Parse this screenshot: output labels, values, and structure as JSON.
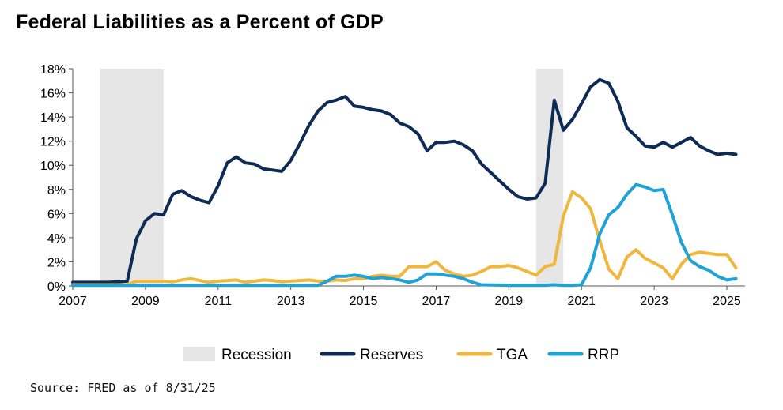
{
  "title": "Federal Liabilities as a Percent of GDP",
  "source": "Source: FRED as of 8/31/25",
  "colors": {
    "Recession": "#e6e6e6",
    "Reserves": "#0d2b55",
    "TGA": "#f0b73c",
    "RRP": "#1fa3d6"
  },
  "chart_data": {
    "type": "line",
    "title": "Federal Liabilities as a Percent of GDP",
    "xlabel": "",
    "ylabel": "",
    "xlim": [
      2007,
      2025.5
    ],
    "ylim": [
      0,
      18
    ],
    "x_ticks": [
      2007,
      2009,
      2011,
      2013,
      2015,
      2017,
      2019,
      2021,
      2023,
      2025
    ],
    "x_tick_labels": [
      "2007",
      "2009",
      "2011",
      "2013",
      "2015",
      "2017",
      "2019",
      "2021",
      "2023",
      "2025"
    ],
    "y_ticks": [
      0,
      2,
      4,
      6,
      8,
      10,
      12,
      14,
      16,
      18
    ],
    "y_tick_labels": [
      "0%",
      "2%",
      "4%",
      "6%",
      "8%",
      "10%",
      "12%",
      "14%",
      "16%",
      "18%"
    ],
    "legend": [
      "Recession",
      "Reserves",
      "TGA",
      "RRP"
    ],
    "legend_position": "bottom",
    "recessions": [
      [
        2007.75,
        2009.5
      ],
      [
        2019.75,
        2020.5
      ]
    ],
    "series": [
      {
        "name": "Reserves",
        "x": [
          2007,
          2007.5,
          2008,
          2008.5,
          2008.75,
          2009,
          2009.25,
          2009.5,
          2009.75,
          2010,
          2010.25,
          2010.5,
          2010.75,
          2011,
          2011.25,
          2011.5,
          2011.75,
          2012,
          2012.25,
          2012.5,
          2012.75,
          2013,
          2013.25,
          2013.5,
          2013.75,
          2014,
          2014.25,
          2014.5,
          2014.75,
          2015,
          2015.25,
          2015.5,
          2015.75,
          2016,
          2016.25,
          2016.5,
          2016.75,
          2017,
          2017.25,
          2017.5,
          2017.75,
          2018,
          2018.25,
          2018.5,
          2018.75,
          2019,
          2019.25,
          2019.5,
          2019.75,
          2020,
          2020.25,
          2020.5,
          2020.75,
          2021,
          2021.25,
          2021.5,
          2021.75,
          2022,
          2022.25,
          2022.5,
          2022.75,
          2023,
          2023.25,
          2023.5,
          2023.75,
          2024,
          2024.25,
          2024.5,
          2024.75,
          2025,
          2025.25
        ],
        "values": [
          0.3,
          0.3,
          0.3,
          0.4,
          3.9,
          5.4,
          6.0,
          5.9,
          7.6,
          7.9,
          7.4,
          7.1,
          6.9,
          8.3,
          10.2,
          10.7,
          10.2,
          10.1,
          9.7,
          9.6,
          9.5,
          10.4,
          11.8,
          13.3,
          14.5,
          15.2,
          15.4,
          15.7,
          14.9,
          14.8,
          14.6,
          14.5,
          14.2,
          13.5,
          13.2,
          12.6,
          11.2,
          11.9,
          11.9,
          12.0,
          11.7,
          11.2,
          10.1,
          9.4,
          8.7,
          8.0,
          7.4,
          7.2,
          7.3,
          8.5,
          15.4,
          12.9,
          13.8,
          15.1,
          16.5,
          17.1,
          16.8,
          15.3,
          13.1,
          12.4,
          11.6,
          11.5,
          11.9,
          11.5,
          11.9,
          12.3,
          11.6,
          11.2,
          10.9,
          11.0,
          10.9
        ]
      },
      {
        "name": "TGA",
        "x": [
          2007,
          2007.5,
          2008,
          2008.5,
          2008.75,
          2009,
          2009.5,
          2009.75,
          2010,
          2010.25,
          2010.75,
          2011,
          2011.25,
          2011.5,
          2011.75,
          2012,
          2012.25,
          2012.5,
          2012.75,
          2013,
          2013.25,
          2013.5,
          2013.75,
          2014,
          2014.25,
          2014.5,
          2014.75,
          2015,
          2015.25,
          2015.5,
          2015.75,
          2016,
          2016.25,
          2016.5,
          2016.75,
          2017,
          2017.25,
          2017.5,
          2017.75,
          2018,
          2018.25,
          2018.5,
          2018.75,
          2019,
          2019.25,
          2019.5,
          2019.75,
          2020,
          2020.25,
          2020.5,
          2020.75,
          2021,
          2021.25,
          2021.5,
          2021.75,
          2022,
          2022.25,
          2022.5,
          2022.75,
          2023,
          2023.25,
          2023.5,
          2023.75,
          2024,
          2024.25,
          2024.5,
          2024.75,
          2025,
          2025.25
        ],
        "values": [
          0.1,
          0.1,
          0.1,
          0.1,
          0.4,
          0.4,
          0.4,
          0.35,
          0.5,
          0.6,
          0.3,
          0.4,
          0.45,
          0.5,
          0.3,
          0.4,
          0.5,
          0.45,
          0.35,
          0.4,
          0.45,
          0.5,
          0.4,
          0.4,
          0.5,
          0.45,
          0.6,
          0.6,
          0.8,
          0.9,
          0.8,
          0.8,
          1.6,
          1.6,
          1.6,
          2.0,
          1.3,
          1.0,
          0.8,
          0.9,
          1.2,
          1.6,
          1.6,
          1.7,
          1.5,
          1.2,
          0.9,
          1.6,
          1.8,
          5.8,
          7.8,
          7.3,
          6.4,
          3.8,
          1.4,
          0.6,
          2.4,
          3.0,
          2.3,
          1.9,
          1.5,
          0.6,
          1.8,
          2.6,
          2.8,
          2.7,
          2.6,
          2.6,
          1.5
        ]
      },
      {
        "name": "RRP",
        "x": [
          2007,
          2013.75,
          2014,
          2014.25,
          2014.5,
          2014.75,
          2015,
          2015.25,
          2015.5,
          2015.75,
          2016,
          2016.25,
          2016.5,
          2016.75,
          2017,
          2017.25,
          2017.5,
          2017.75,
          2018,
          2018.25,
          2019,
          2019.5,
          2020,
          2020.25,
          2020.5,
          2020.75,
          2021,
          2021.25,
          2021.5,
          2021.75,
          2022,
          2022.25,
          2022.5,
          2022.75,
          2023,
          2023.25,
          2023.5,
          2023.75,
          2024,
          2024.25,
          2024.5,
          2024.75,
          2025,
          2025.25
        ],
        "values": [
          0.05,
          0.05,
          0.4,
          0.8,
          0.8,
          0.9,
          0.8,
          0.6,
          0.7,
          0.6,
          0.5,
          0.3,
          0.5,
          1.0,
          1.0,
          0.9,
          0.8,
          0.6,
          0.3,
          0.1,
          0.05,
          0.05,
          0.05,
          0.1,
          0.05,
          0.05,
          0.1,
          1.5,
          4.3,
          5.9,
          6.5,
          7.6,
          8.4,
          8.2,
          7.9,
          8.0,
          5.9,
          3.6,
          2.1,
          1.6,
          1.3,
          0.8,
          0.5,
          0.6
        ]
      }
    ]
  }
}
